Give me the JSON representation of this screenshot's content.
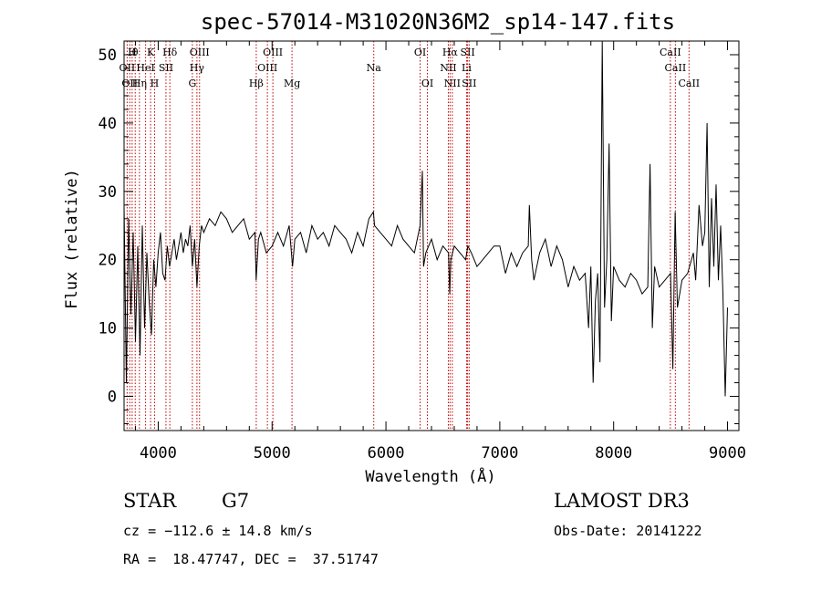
{
  "chart_data": {
    "type": "line",
    "title": "spec-57014-M31020N36M2_sp14-147.fits",
    "xlabel": "Wavelength (Å)",
    "ylabel": "Flux (relative)",
    "xlim": [
      3700,
      9100
    ],
    "ylim": [
      -5,
      52
    ],
    "x_ticks": [
      4000,
      5000,
      6000,
      7000,
      8000,
      9000
    ],
    "y_ticks": [
      0,
      10,
      20,
      30,
      40,
      50
    ],
    "grid": false,
    "series": [
      {
        "x": [
          3700,
          3720,
          3740,
          3760,
          3780,
          3800,
          3820,
          3840,
          3860,
          3880,
          3900,
          3920,
          3940,
          3960,
          3980,
          4000,
          4020,
          4040,
          4060,
          4080,
          4100,
          4120,
          4140,
          4160,
          4180,
          4200,
          4220,
          4240,
          4260,
          4280,
          4300,
          4320,
          4340,
          4360,
          4380,
          4400,
          4450,
          4500,
          4550,
          4600,
          4650,
          4700,
          4750,
          4800,
          4850,
          4860,
          4880,
          4900,
          4950,
          5000,
          5050,
          5100,
          5150,
          5180,
          5200,
          5250,
          5300,
          5350,
          5400,
          5450,
          5500,
          5550,
          5600,
          5650,
          5700,
          5750,
          5800,
          5850,
          5890,
          5900,
          5950,
          6000,
          6050,
          6100,
          6150,
          6200,
          6250,
          6300,
          6320,
          6330,
          6350,
          6400,
          6450,
          6500,
          6550,
          6560,
          6570,
          6600,
          6650,
          6700,
          6720,
          6750,
          6800,
          6850,
          6900,
          6950,
          7000,
          7050,
          7100,
          7150,
          7200,
          7250,
          7260,
          7280,
          7300,
          7350,
          7400,
          7450,
          7500,
          7550,
          7600,
          7650,
          7700,
          7750,
          7780,
          7800,
          7820,
          7840,
          7860,
          7880,
          7900,
          7920,
          7940,
          7960,
          7980,
          8000,
          8050,
          8100,
          8150,
          8200,
          8250,
          8300,
          8320,
          8340,
          8360,
          8400,
          8450,
          8500,
          8520,
          8540,
          8560,
          8600,
          8650,
          8700,
          8720,
          8750,
          8780,
          8800,
          8820,
          8840,
          8860,
          8880,
          8900,
          8920,
          8940,
          8960,
          8980,
          9000
        ],
        "y": [
          28,
          2,
          26,
          12,
          24,
          8,
          22,
          6,
          25,
          10,
          21,
          14,
          9,
          20,
          16,
          21,
          24,
          18,
          17,
          22,
          19,
          21,
          23,
          20,
          22,
          24,
          21,
          23,
          22,
          25,
          19,
          23,
          16,
          22,
          25,
          24,
          26,
          25,
          27,
          26,
          24,
          25,
          26,
          23,
          24,
          17,
          23,
          24,
          21,
          22,
          24,
          22,
          25,
          19,
          23,
          24,
          21,
          25,
          23,
          24,
          22,
          25,
          24,
          23,
          21,
          24,
          22,
          26,
          27,
          25,
          24,
          23,
          22,
          25,
          23,
          22,
          21,
          25,
          33,
          19,
          21,
          23,
          20,
          22,
          21,
          15,
          20,
          22,
          21,
          20,
          22,
          21,
          19,
          20,
          21,
          22,
          22,
          18,
          21,
          19,
          21,
          22,
          28,
          20,
          17,
          21,
          23,
          19,
          22,
          20,
          16,
          19,
          17,
          18,
          10,
          19,
          2,
          14,
          18,
          5,
          52,
          13,
          20,
          37,
          11,
          19,
          17,
          16,
          18,
          17,
          15,
          16,
          34,
          10,
          19,
          16,
          17,
          18,
          4,
          27,
          13,
          17,
          18,
          21,
          17,
          28,
          22,
          24,
          40,
          16,
          29,
          19,
          31,
          17,
          25,
          15,
          0,
          13
        ]
      }
    ],
    "line_ids": [
      {
        "wl": 3727,
        "row": 1,
        "text": "OII"
      },
      {
        "wl": 3750,
        "row": 2,
        "text": "OII"
      },
      {
        "wl": 3771,
        "row": 0,
        "text": "H"
      },
      {
        "wl": 3798,
        "row": 0,
        "text": "θ"
      },
      {
        "wl": 3835,
        "row": 2,
        "text": "Hη"
      },
      {
        "wl": 3889,
        "row": 1,
        "text": "HeI"
      },
      {
        "wl": 3933,
        "row": 0,
        "text": "K"
      },
      {
        "wl": 3968,
        "row": 2,
        "text": "H"
      },
      {
        "wl": 4068,
        "row": 1,
        "text": "SII"
      },
      {
        "wl": 4102,
        "row": 0,
        "text": "Hδ"
      },
      {
        "wl": 4300,
        "row": 2,
        "text": "G"
      },
      {
        "wl": 4340,
        "row": 1,
        "text": "Hγ"
      },
      {
        "wl": 4363,
        "row": 0,
        "text": "OIII"
      },
      {
        "wl": 4861,
        "row": 2,
        "text": "Hβ"
      },
      {
        "wl": 4959,
        "row": 1,
        "text": "OIII"
      },
      {
        "wl": 5007,
        "row": 0,
        "text": "OIII"
      },
      {
        "wl": 5175,
        "row": 2,
        "text": "Mg"
      },
      {
        "wl": 5893,
        "row": 1,
        "text": "Na"
      },
      {
        "wl": 6300,
        "row": 0,
        "text": "OI"
      },
      {
        "wl": 6364,
        "row": 2,
        "text": "OI"
      },
      {
        "wl": 6548,
        "row": 1,
        "text": "NII"
      },
      {
        "wl": 6563,
        "row": 0,
        "text": "Hα"
      },
      {
        "wl": 6583,
        "row": 2,
        "text": "NII"
      },
      {
        "wl": 6708,
        "row": 1,
        "text": "Li"
      },
      {
        "wl": 6717,
        "row": 0,
        "text": "SII"
      },
      {
        "wl": 6731,
        "row": 2,
        "text": "SII"
      },
      {
        "wl": 8498,
        "row": 0,
        "text": "CaII"
      },
      {
        "wl": 8542,
        "row": 1,
        "text": "CaII"
      },
      {
        "wl": 8662,
        "row": 2,
        "text": "CaII"
      }
    ]
  },
  "info": {
    "class": "STAR",
    "subclass": "G7",
    "survey": "LAMOST DR3",
    "cz": "cz = −112.6 ± 14.8 km/s",
    "obs_date": "Obs-Date: 20141222",
    "coords": "RA =  18.47747, DEC =  37.51747"
  }
}
